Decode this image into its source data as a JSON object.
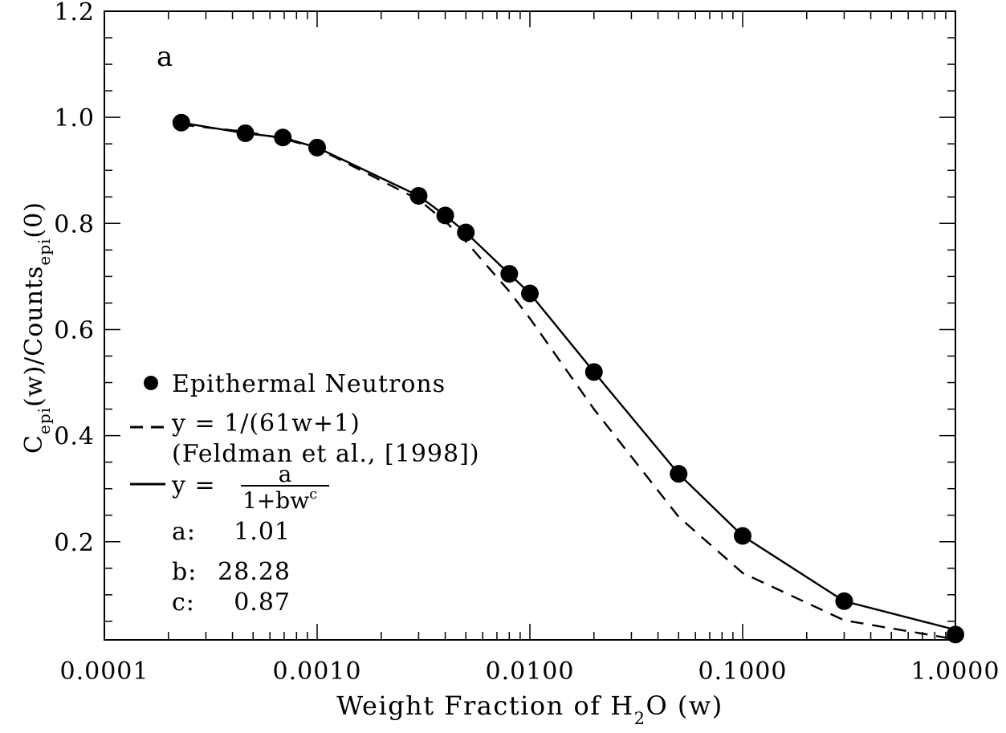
{
  "chart_data": {
    "type": "line",
    "panel_label": "a",
    "xlabel": {
      "main": "Weight Fraction of H",
      "sub": "2",
      "tail": "O (w)"
    },
    "ylabel": {
      "p1": "C",
      "s1": "epi",
      "p2": "(w)/Counts",
      "s2": "epi",
      "p3": "(0)"
    },
    "xscale": "log",
    "xlim": [
      0.0001,
      1.0
    ],
    "ylim": [
      0.015,
      1.2
    ],
    "x_ticks": [
      {
        "value": 0.0001,
        "label": "0.0001"
      },
      {
        "value": 0.001,
        "label": "0.0010"
      },
      {
        "value": 0.01,
        "label": "0.0100"
      },
      {
        "value": 0.1,
        "label": "0.1000"
      },
      {
        "value": 1.0,
        "label": "1.0000"
      }
    ],
    "y_ticks": [
      {
        "value": 0.2,
        "label": "0.2"
      },
      {
        "value": 0.4,
        "label": "0.4"
      },
      {
        "value": 0.6,
        "label": "0.6"
      },
      {
        "value": 0.8,
        "label": "0.8"
      },
      {
        "value": 1.0,
        "label": "1.0"
      },
      {
        "value": 1.2,
        "label": "1.2"
      }
    ],
    "series": [
      {
        "name": "Epithermal Neutrons",
        "style": "points",
        "x": [
          0.00023,
          0.00046,
          0.00069,
          0.001,
          0.003,
          0.004,
          0.005,
          0.008,
          0.01,
          0.02,
          0.05,
          0.1,
          0.3,
          1.0
        ],
        "y": [
          0.99,
          0.97,
          0.962,
          0.943,
          0.852,
          0.815,
          0.783,
          0.705,
          0.668,
          0.52,
          0.328,
          0.211,
          0.088,
          0.025
        ]
      },
      {
        "name": "y = 1/(61w+1)",
        "style": "dashed",
        "x": [
          0.00023,
          0.00046,
          0.00069,
          0.001,
          0.003,
          0.004,
          0.005,
          0.008,
          0.01,
          0.02,
          0.05,
          0.1,
          0.3,
          1.0
        ],
        "y": [
          0.986,
          0.973,
          0.96,
          0.942,
          0.845,
          0.804,
          0.766,
          0.672,
          0.621,
          0.45,
          0.247,
          0.141,
          0.052,
          0.016
        ]
      },
      {
        "name": "y = a/(1+bw^c)",
        "style": "solid",
        "x": [
          0.00023,
          0.00046,
          0.00069,
          0.001,
          0.003,
          0.004,
          0.005,
          0.008,
          0.01,
          0.02,
          0.05,
          0.1,
          0.3,
          1.0
        ],
        "y": [
          0.99,
          0.97,
          0.962,
          0.943,
          0.852,
          0.815,
          0.783,
          0.705,
          0.668,
          0.52,
          0.328,
          0.211,
          0.088,
          0.034
        ]
      }
    ],
    "legend": {
      "position": "lower-left",
      "points_label": "Epithermal Neutrons",
      "dashed_label": "y = 1/(61w+1)",
      "dashed_citation": "(Feldman et al., [1998])",
      "solid_prefix": "y =",
      "solid_num": "a",
      "solid_den": "1+bw",
      "solid_exp": "c",
      "params": [
        {
          "name": "a:",
          "value": "1.01"
        },
        {
          "name": "b:",
          "value": "28.28"
        },
        {
          "name": "c:",
          "value": "0.87"
        }
      ]
    }
  }
}
